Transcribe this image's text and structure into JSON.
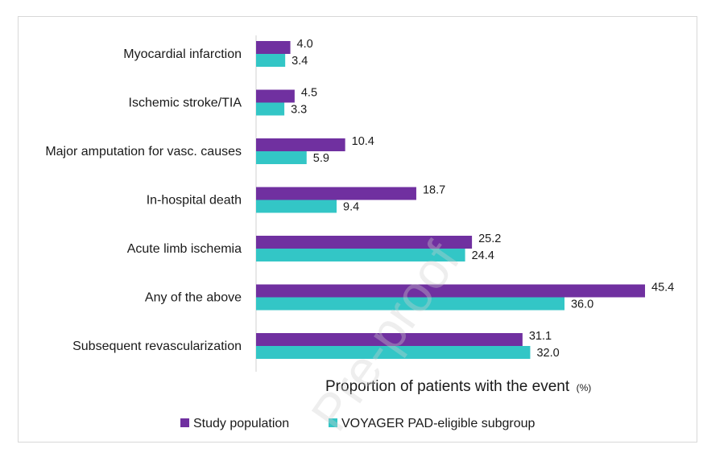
{
  "chart_data": {
    "type": "bar",
    "orientation": "horizontal",
    "categories": [
      "Myocardial infarction",
      "Ischemic stroke/TIA",
      "Major amputation for vasc. causes",
      "In-hospital death",
      "Acute limb ischemia",
      "Any of the above",
      "Subsequent revascularization"
    ],
    "series": [
      {
        "name": "Study population",
        "color": "#7030a0",
        "values": [
          4.0,
          4.5,
          10.4,
          18.7,
          25.2,
          45.4,
          31.1
        ],
        "labels": [
          "4.0",
          "4.5",
          "10.4",
          "18.7",
          "25.2",
          "45.4",
          "31.1"
        ]
      },
      {
        "name": "VOYAGER PAD-eligible subgroup",
        "color": "#33c6c6",
        "values": [
          3.4,
          3.3,
          5.9,
          9.4,
          24.4,
          36.0,
          32.0
        ],
        "labels": [
          "3.4",
          "3.3",
          "5.9",
          "9.4",
          "24.4",
          "36.0",
          "32.0"
        ]
      }
    ],
    "xlabel": "Proportion of patients with the event",
    "xlabel_unit": "(%)",
    "xlim": [
      0,
      46.5
    ],
    "grid": false,
    "legend_position": "bottom"
  },
  "watermark": "Pre-proof"
}
